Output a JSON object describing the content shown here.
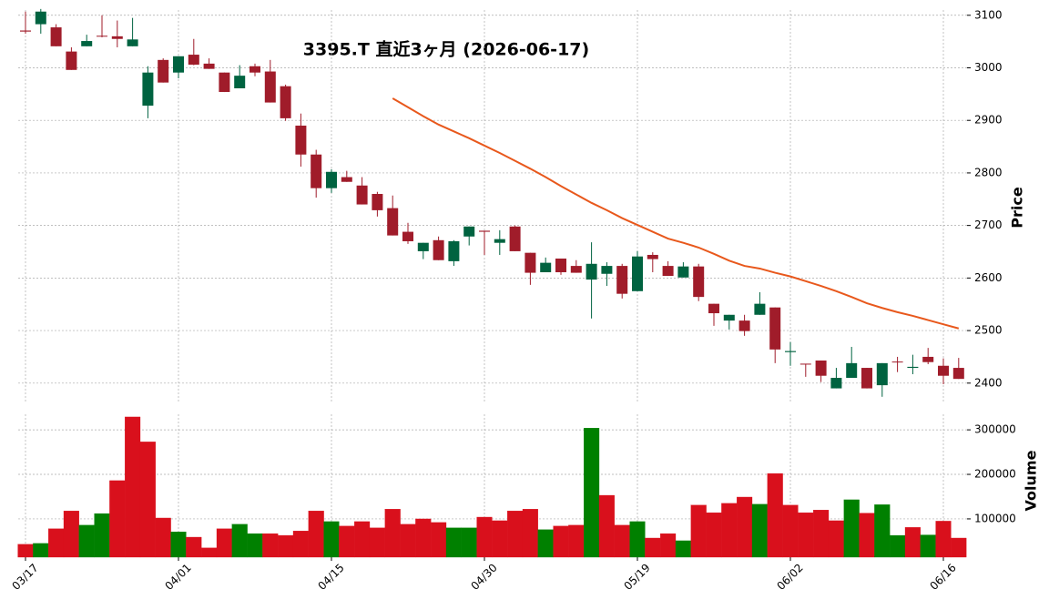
{
  "chart_data": {
    "type": "candlestick",
    "title": "3395.T  直近3ヶ月  (2026-06-17)",
    "categories": [
      "03/17",
      null,
      null,
      null,
      null,
      null,
      null,
      null,
      null,
      null,
      "04/01",
      null,
      null,
      null,
      null,
      null,
      null,
      null,
      null,
      null,
      "04/15",
      null,
      null,
      null,
      null,
      null,
      null,
      null,
      null,
      null,
      "04/30",
      null,
      null,
      null,
      null,
      null,
      null,
      null,
      null,
      null,
      "05/19",
      null,
      null,
      null,
      null,
      null,
      null,
      null,
      null,
      null,
      "06/02",
      null,
      null,
      null,
      null,
      null,
      null,
      null,
      null,
      null,
      "06/16",
      null
    ],
    "open": [
      3071,
      3083,
      3077,
      3031,
      3041,
      3061,
      3060,
      3041,
      2928,
      3015,
      2991,
      3025,
      3008,
      2991,
      2961,
      3003,
      2993,
      2965,
      2890,
      2835,
      2771,
      2792,
      2776,
      2760,
      2733,
      2688,
      2651,
      2672,
      2632,
      2679,
      2690,
      2667,
      2698,
      2648,
      2611,
      2637,
      2623,
      2597,
      2608,
      2623,
      2575,
      2644,
      2623,
      2601,
      2622,
      2551,
      2519,
      2519,
      2530,
      2544,
      2459,
      2437,
      2443,
      2390,
      2410,
      2429,
      2396,
      2441,
      2429,
      2450,
      2433,
      2429
    ],
    "high": [
      3107,
      3112,
      3083,
      3039,
      3063,
      3100,
      3090,
      3095,
      3003,
      3018,
      3022,
      3055,
      3018,
      2991,
      3005,
      3008,
      3015,
      2968,
      2913,
      2844,
      2807,
      2804,
      2792,
      2764,
      2757,
      2705,
      2667,
      2679,
      2672,
      2698,
      2690,
      2691,
      2700,
      2648,
      2639,
      2637,
      2634,
      2668,
      2630,
      2627,
      2651,
      2649,
      2632,
      2630,
      2627,
      2551,
      2530,
      2530,
      2573,
      2544,
      2478,
      2437,
      2443,
      2429,
      2469,
      2429,
      2438,
      2450,
      2454,
      2467,
      2447,
      2448
    ],
    "low": [
      3065,
      3065,
      3041,
      2996,
      3041,
      3058,
      3039,
      3041,
      2904,
      2972,
      2980,
      3005,
      2998,
      2954,
      2961,
      2984,
      2934,
      2899,
      2812,
      2753,
      2762,
      2783,
      2740,
      2717,
      2681,
      2665,
      2636,
      2634,
      2623,
      2662,
      2644,
      2644,
      2651,
      2587,
      2611,
      2606,
      2610,
      2523,
      2585,
      2561,
      2575,
      2611,
      2604,
      2601,
      2556,
      2509,
      2502,
      2490,
      2530,
      2438,
      2433,
      2412,
      2402,
      2390,
      2410,
      2390,
      2374,
      2421,
      2417,
      2436,
      2398,
      2408
    ],
    "close": [
      3069,
      3107,
      3041,
      2996,
      3051,
      3060,
      3055,
      3054,
      2991,
      2972,
      3022,
      3006,
      2998,
      2954,
      2985,
      2991,
      2934,
      2904,
      2835,
      2771,
      2802,
      2783,
      2740,
      2729,
      2681,
      2670,
      2667,
      2634,
      2670,
      2698,
      2688,
      2674,
      2651,
      2610,
      2629,
      2611,
      2610,
      2627,
      2623,
      2570,
      2641,
      2636,
      2604,
      2622,
      2564,
      2533,
      2530,
      2499,
      2551,
      2464,
      2461,
      2436,
      2414,
      2410,
      2438,
      2390,
      2438,
      2440,
      2431,
      2440,
      2414,
      2408
    ],
    "volume": [
      43000,
      45000,
      78000,
      118000,
      86000,
      112000,
      186000,
      329000,
      273000,
      102000,
      71000,
      59000,
      35000,
      78000,
      88000,
      67000,
      67000,
      63000,
      73000,
      118000,
      94000,
      84000,
      94000,
      80000,
      122000,
      88000,
      100000,
      92000,
      80000,
      80000,
      104000,
      96000,
      118000,
      122000,
      76000,
      84000,
      86000,
      304000,
      153000,
      86000,
      94000,
      57000,
      67000,
      51000,
      131000,
      114000,
      135000,
      149000,
      133000,
      202000,
      131000,
      114000,
      120000,
      96000,
      143000,
      113000,
      132000,
      63000,
      81000,
      64000,
      95000,
      57000
    ],
    "ma": {
      "color": "#e8581c",
      "values": [
        null,
        null,
        null,
        null,
        null,
        null,
        null,
        null,
        null,
        null,
        null,
        null,
        null,
        null,
        null,
        null,
        null,
        null,
        null,
        null,
        null,
        null,
        null,
        null,
        2942,
        2925,
        2908,
        2892,
        2879,
        2866,
        2852,
        2838,
        2823,
        2808,
        2792,
        2775,
        2759,
        2743,
        2729,
        2714,
        2701,
        2688,
        2675,
        2667,
        2658,
        2646,
        2633,
        2623,
        2618,
        2610,
        2603,
        2594,
        2585,
        2575,
        2564,
        2552,
        2543,
        2535,
        2528,
        2520,
        2512,
        2504
      ]
    },
    "up_color": "#006340",
    "down_color": "#a01c2a",
    "volume_up_color": "#008000",
    "volume_down_color": "#d9101c",
    "ylabel": "Price",
    "ylim": [
      2365,
      3110
    ],
    "yticks": [
      2400,
      2500,
      2600,
      2700,
      2800,
      2900,
      3000,
      3100
    ],
    "volume_label": "Volume",
    "volume_ylim": [
      14000,
      335000
    ],
    "volume_yticks": [
      100000,
      200000,
      300000
    ],
    "grid": true
  }
}
